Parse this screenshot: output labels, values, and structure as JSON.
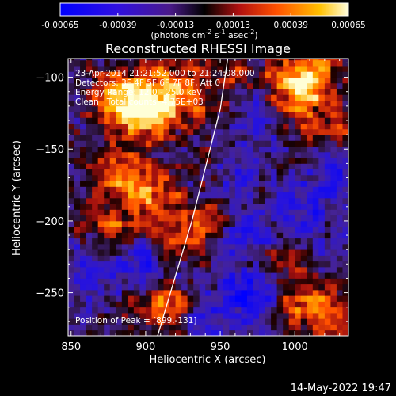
{
  "chart_data": {
    "type": "heatmap",
    "title": "Reconstructed RHESSI Image",
    "xlabel": "Heliocentric X (arcsec)",
    "ylabel": "Heliocentric Y (arcsec)",
    "xlim": [
      848,
      1036
    ],
    "ylim": [
      -280,
      -87
    ],
    "xticks": [
      850,
      900,
      950,
      1000
    ],
    "yticks": [
      -100,
      -150,
      -200,
      -250
    ],
    "colorbar": {
      "ticks": [
        "-0.00065",
        "-0.00039",
        "-0.00013",
        "0.00013",
        "0.00039",
        "0.00065"
      ],
      "range": [
        -0.00065,
        0.00065
      ],
      "unit_label": "(photons cm",
      "unit_label_parts": [
        "(photons cm",
        "-2",
        " s",
        "-1",
        " asec",
        "-2",
        ")"
      ]
    },
    "annotations": {
      "time_range": "23-Apr-2014 21:21:52.000 to 21:24:08.000",
      "detectors": "Detectors: 3F 4F 5F 6F 7F 8F, Att 0",
      "energy": "Energy Range: 12.0 - 25.0 keV",
      "method": "Clean   Total counts: 4.75E+03",
      "peak": "Position of Peak = [899,-131]"
    },
    "bright_regions": [
      {
        "x": 898,
        "y": -127,
        "intensity": 1.0
      },
      {
        "x": 880,
        "y": -112,
        "intensity": 0.8
      },
      {
        "x": 912,
        "y": -105,
        "intensity": 0.7
      },
      {
        "x": 928,
        "y": -118,
        "intensity": 0.55
      },
      {
        "x": 878,
        "y": -168,
        "intensity": 0.65
      },
      {
        "x": 903,
        "y": -178,
        "intensity": 0.75
      },
      {
        "x": 875,
        "y": -205,
        "intensity": 0.55
      },
      {
        "x": 917,
        "y": -212,
        "intensity": 0.6
      },
      {
        "x": 940,
        "y": -200,
        "intensity": 0.45
      },
      {
        "x": 918,
        "y": -263,
        "intensity": 0.55
      },
      {
        "x": 904,
        "y": -255,
        "intensity": 0.4
      },
      {
        "x": 1012,
        "y": -98,
        "intensity": 0.75
      },
      {
        "x": 1000,
        "y": -120,
        "intensity": 0.55
      },
      {
        "x": 1028,
        "y": -135,
        "intensity": 0.5
      },
      {
        "x": 992,
        "y": -103,
        "intensity": 0.5
      },
      {
        "x": 955,
        "y": -95,
        "intensity": 0.4
      },
      {
        "x": 1005,
        "y": -255,
        "intensity": 0.55
      },
      {
        "x": 1025,
        "y": -268,
        "intensity": 0.5
      },
      {
        "x": 985,
        "y": -225,
        "intensity": 0.35
      },
      {
        "x": 945,
        "y": -160,
        "intensity": 0.4
      }
    ],
    "dark_regions": [
      {
        "x": 900,
        "y": -232,
        "intensity": -0.6
      },
      {
        "x": 970,
        "y": -250,
        "intensity": -0.55
      },
      {
        "x": 955,
        "y": -165,
        "intensity": -0.5
      },
      {
        "x": 970,
        "y": -212,
        "intensity": -0.45
      },
      {
        "x": 1010,
        "y": -190,
        "intensity": -0.45
      },
      {
        "x": 980,
        "y": -120,
        "intensity": -0.45
      },
      {
        "x": 1030,
        "y": -165,
        "intensity": -0.4
      },
      {
        "x": 862,
        "y": -230,
        "intensity": -0.35
      },
      {
        "x": 940,
        "y": -270,
        "intensity": -0.45
      }
    ],
    "limb_line": {
      "points": [
        [
          908,
          -280
        ],
        [
          931,
          -200
        ],
        [
          950,
          -122
        ],
        [
          955,
          -87
        ]
      ]
    }
  },
  "footer": {
    "timestamp": "14-May-2022 19:47"
  },
  "colors": {
    "background": "#000000",
    "axes": "#ffffff",
    "limb": "#ffffff"
  }
}
